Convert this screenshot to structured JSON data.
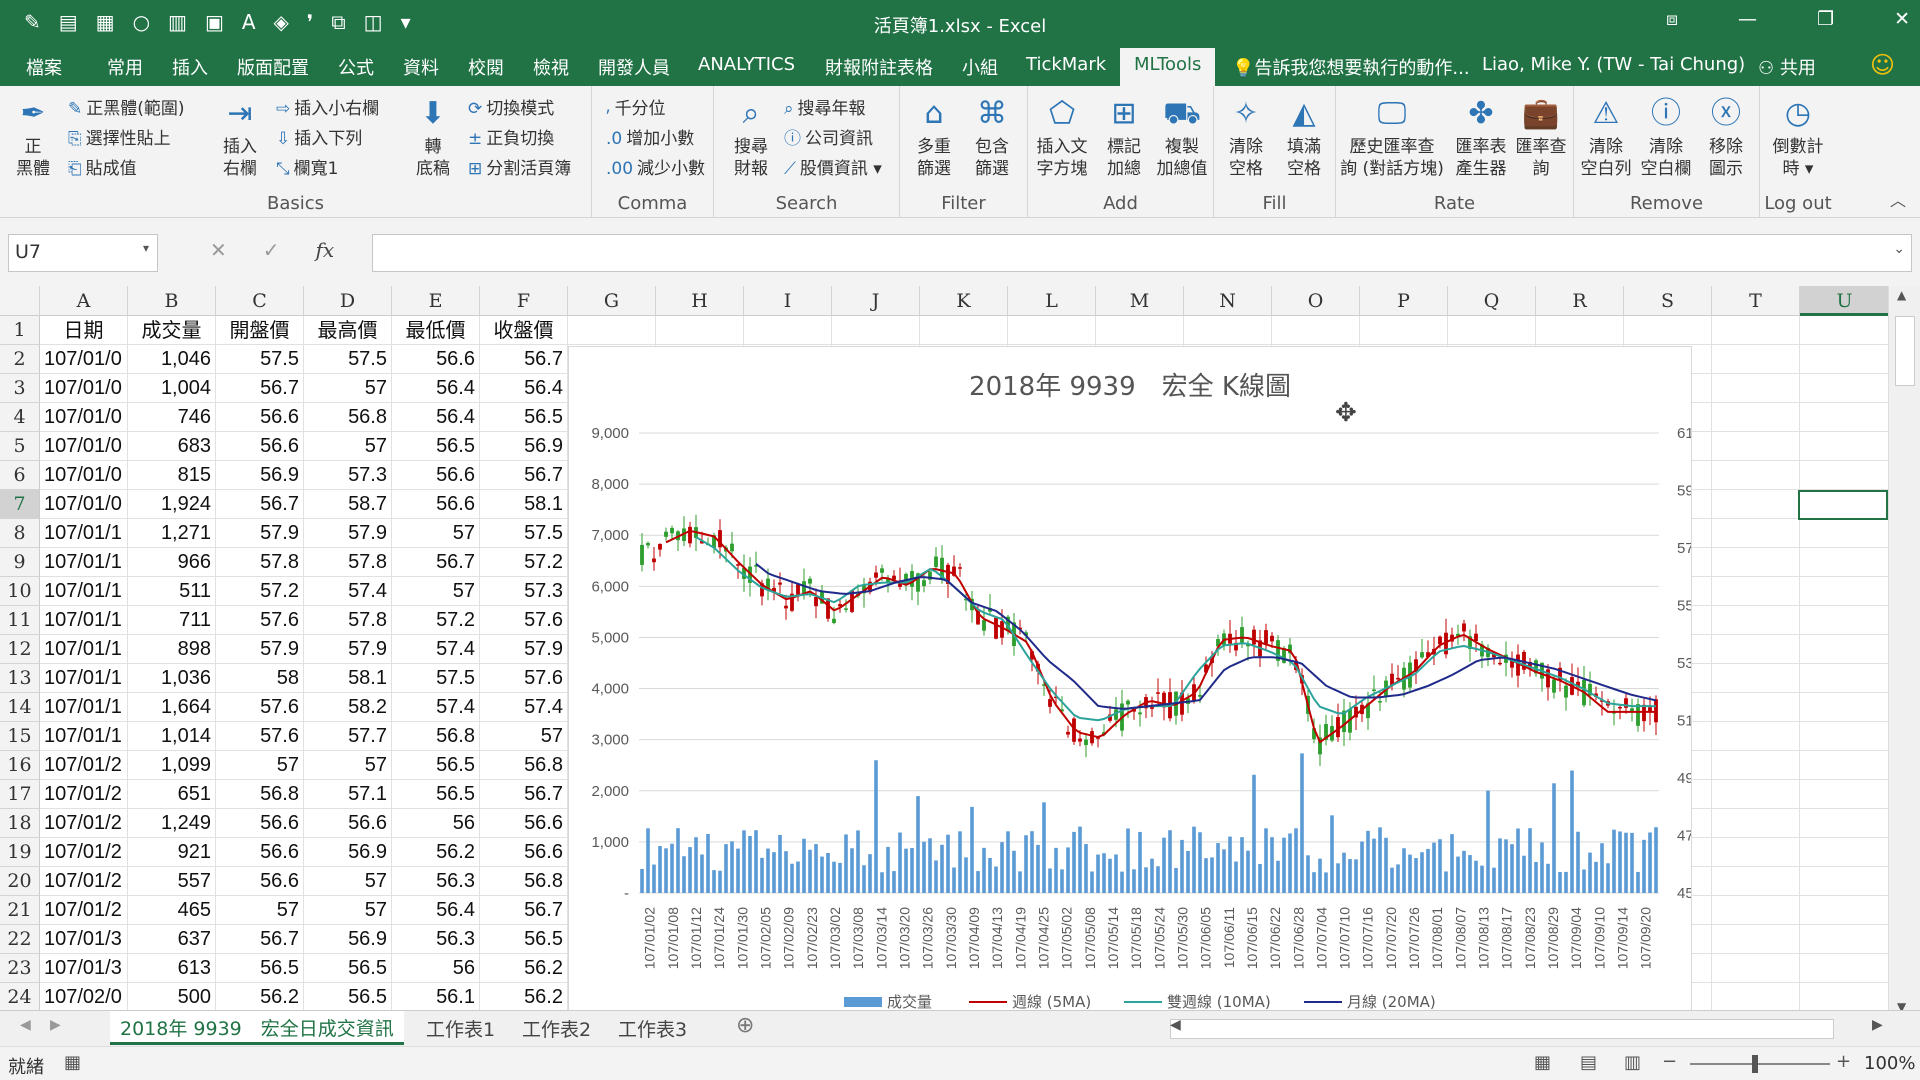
{
  "window": {
    "title": "活頁簿1.xlsx - Excel"
  },
  "tabs": [
    "檔案",
    "常用",
    "插入",
    "版面配置",
    "公式",
    "資料",
    "校閱",
    "檢視",
    "開發人員",
    "ANALYTICS",
    "財報附註表格",
    "小組",
    "TickMark",
    "MLTools"
  ],
  "tell_me": "告訴我您想要執行的動作...",
  "user": "Liao, Mike Y. (TW - Tai Chung)",
  "share": "共用",
  "ribbon": {
    "groups": [
      "Basics",
      "Comma",
      "Search",
      "Filter",
      "Add",
      "Fill",
      "Rate",
      "Remove",
      "Log out"
    ],
    "basics": {
      "big": "正\n黑體",
      "s1": "正黑體(範圍)",
      "s2": "選擇性貼上",
      "s3": "貼成值",
      "big2": "插入\n右欄",
      "s4": "插入小右欄",
      "s5": "插入下列",
      "s6": "欄寬1",
      "big3": "轉\n底稿",
      "s7": "切換模式",
      "s8": "正負切換",
      "s9": "分割活頁簿"
    },
    "comma": {
      "s1": "千分位",
      "s2": "增加小數",
      "s3": "減少小數"
    },
    "search": {
      "big": "搜尋\n財報",
      "s1": "搜尋年報",
      "s2": "公司資訊",
      "s3": "股價資訊"
    },
    "filter": {
      "b1": "多重\n篩選",
      "b2": "包含\n篩選"
    },
    "add": {
      "b1": "插入文\n字方塊",
      "b2": "標記\n加總",
      "b3": "複製\n加總值"
    },
    "fill": {
      "b1": "清除\n空格",
      "b2": "填滿\n空格"
    },
    "rate": {
      "b1": "歷史匯率查\n詢 (對話方塊)",
      "b2": "匯率表\n產生器",
      "b3": "匯率查\n詢"
    },
    "remove": {
      "b1": "清除\n空白列",
      "b2": "清除\n空白欄",
      "b3": "移除\n圖示"
    },
    "logout": {
      "b1": "倒數計\n時"
    }
  },
  "name_box": "U7",
  "fx_icon": "fx",
  "columns": [
    "A",
    "B",
    "C",
    "D",
    "E",
    "F",
    "G",
    "H",
    "I",
    "J",
    "K",
    "L",
    "M",
    "N",
    "O",
    "P",
    "Q",
    "R",
    "S",
    "T",
    "U"
  ],
  "rows": [
    "1",
    "2",
    "3",
    "4",
    "5",
    "6",
    "7",
    "8",
    "9",
    "10",
    "11",
    "12",
    "13",
    "14",
    "15",
    "16",
    "17",
    "18",
    "19",
    "20",
    "21",
    "22",
    "23",
    "24"
  ],
  "headers": [
    "日期",
    "成交量",
    "開盤價",
    "最高價",
    "最低價",
    "收盤價"
  ],
  "table": [
    [
      "107/01/0",
      "1,046",
      "57.5",
      "57.5",
      "56.6",
      "56.7"
    ],
    [
      "107/01/0",
      "1,004",
      "56.7",
      "57",
      "56.4",
      "56.4"
    ],
    [
      "107/01/0",
      "746",
      "56.6",
      "56.8",
      "56.4",
      "56.5"
    ],
    [
      "107/01/0",
      "683",
      "56.6",
      "57",
      "56.5",
      "56.9"
    ],
    [
      "107/01/0",
      "815",
      "56.9",
      "57.3",
      "56.6",
      "56.7"
    ],
    [
      "107/01/0",
      "1,924",
      "56.7",
      "58.7",
      "56.6",
      "58.1"
    ],
    [
      "107/01/1",
      "1,271",
      "57.9",
      "57.9",
      "57",
      "57.5"
    ],
    [
      "107/01/1",
      "966",
      "57.8",
      "57.8",
      "56.7",
      "57.2"
    ],
    [
      "107/01/1",
      "511",
      "57.2",
      "57.4",
      "57",
      "57.3"
    ],
    [
      "107/01/1",
      "711",
      "57.6",
      "57.8",
      "57.2",
      "57.6"
    ],
    [
      "107/01/1",
      "898",
      "57.9",
      "57.9",
      "57.4",
      "57.9"
    ],
    [
      "107/01/1",
      "1,036",
      "58",
      "58.1",
      "57.5",
      "57.6"
    ],
    [
      "107/01/1",
      "1,664",
      "57.6",
      "58.2",
      "57.4",
      "57.4"
    ],
    [
      "107/01/1",
      "1,014",
      "57.6",
      "57.7",
      "56.8",
      "57"
    ],
    [
      "107/01/2",
      "1,099",
      "57",
      "57",
      "56.5",
      "56.8"
    ],
    [
      "107/01/2",
      "651",
      "56.8",
      "57.1",
      "56.5",
      "56.7"
    ],
    [
      "107/01/2",
      "1,249",
      "56.6",
      "56.6",
      "56",
      "56.6"
    ],
    [
      "107/01/2",
      "921",
      "56.6",
      "56.9",
      "56.2",
      "56.6"
    ],
    [
      "107/01/2",
      "557",
      "56.6",
      "57",
      "56.3",
      "56.8"
    ],
    [
      "107/01/2",
      "465",
      "57",
      "57",
      "56.4",
      "56.7"
    ],
    [
      "107/01/3",
      "637",
      "56.7",
      "56.9",
      "56.3",
      "56.5"
    ],
    [
      "107/01/3",
      "613",
      "56.5",
      "56.5",
      "56",
      "56.2"
    ],
    [
      "107/02/0",
      "500",
      "56.2",
      "56.5",
      "56.1",
      "56.2"
    ]
  ],
  "chart_data": {
    "type": "line",
    "title": "2018年 9939　宏全 K線圖",
    "y_left_ticks": [
      "9,000",
      "8,000",
      "7,000",
      "6,000",
      "5,000",
      "4,000",
      "3,000",
      "2,000",
      "1,000",
      "-"
    ],
    "y_right_ticks": [
      "61",
      "59",
      "57",
      "55",
      "53",
      "51",
      "49",
      "47",
      "45"
    ],
    "ylim_volume": [
      0,
      9000
    ],
    "ylim_price": [
      45,
      61
    ],
    "x_ticks": [
      "107/01/02",
      "107/01/08",
      "107/01/12",
      "107/01/24",
      "107/01/30",
      "107/02/05",
      "107/02/09",
      "107/02/23",
      "107/03/02",
      "107/03/08",
      "107/03/14",
      "107/03/20",
      "107/03/26",
      "107/03/30",
      "107/04/09",
      "107/04/13",
      "107/04/19",
      "107/04/25",
      "107/05/02",
      "107/05/08",
      "107/05/14",
      "107/05/18",
      "107/05/24",
      "107/05/30",
      "107/06/05",
      "107/06/11",
      "107/06/15",
      "107/06/22",
      "107/06/28",
      "107/07/04",
      "107/07/10",
      "107/07/16",
      "107/07/20",
      "107/07/26",
      "107/08/01",
      "107/08/07",
      "107/08/13",
      "107/08/17",
      "107/08/23",
      "107/08/29",
      "107/09/04",
      "107/09/10",
      "107/09/14",
      "107/09/20"
    ],
    "legend": [
      "成交量",
      "週線 (5MA)",
      "雙週線 (10MA)",
      "月線 (20MA)"
    ],
    "ma5": [
      56.7,
      57.2,
      57.6,
      57.4,
      56.5,
      55.7,
      55.2,
      55.5,
      54.8,
      55.4,
      56.0,
      55.7,
      56.3,
      56.1,
      54.6,
      54.2,
      53.7,
      51.7,
      50.6,
      50.4,
      51.2,
      51.7,
      51.5,
      52.0,
      53.8,
      53.9,
      53.6,
      53.4,
      50.2,
      50.8,
      51.5,
      52.2,
      52.7,
      53.6,
      54.0,
      53.5,
      53.1,
      52.7,
      52.4,
      52.0,
      51.3,
      51.3,
      51.3
    ],
    "ma10": [
      57.0,
      57.3,
      57.5,
      57.0,
      56.2,
      55.6,
      55.3,
      55.4,
      55.1,
      55.7,
      55.8,
      55.8,
      56.3,
      55.6,
      54.8,
      54.5,
      53.2,
      52.0,
      51.1,
      51.0,
      51.4,
      51.5,
      51.5,
      52.7,
      53.6,
      53.7,
      53.4,
      53.0,
      51.5,
      51.2,
      51.8,
      52.2,
      52.6,
      53.4,
      53.6,
      53.4,
      53.1,
      52.8,
      52.5,
      52.1,
      51.6,
      51.5,
      51.5
    ],
    "ma20": [
      57.0,
      57.0,
      57.3,
      57.2,
      56.8,
      56.1,
      55.8,
      55.5,
      55.4,
      55.5,
      55.8,
      56.0,
      55.9,
      55.1,
      54.8,
      54.1,
      53.1,
      52.4,
      51.5,
      51.4,
      51.5,
      51.6,
      51.7,
      52.8,
      53.2,
      53.2,
      53.0,
      52.2,
      51.8,
      51.8,
      51.9,
      52.2,
      52.6,
      53.1,
      53.2,
      53.0,
      52.8,
      52.5,
      52.2,
      51.9,
      51.7
    ]
  },
  "sheet_tabs": [
    "2018年 9939　宏全日成交資訊",
    "工作表1",
    "工作表2",
    "工作表3"
  ],
  "status": {
    "ready": "就緒",
    "zoom": "100%"
  },
  "colors": {
    "accent": "#217346",
    "volume": "#5b9bd5",
    "ma5": "#c00000",
    "ma10": "#2ca39b",
    "ma20": "#1f2a8a",
    "up": "#c00000",
    "down": "#2e9e2e"
  }
}
